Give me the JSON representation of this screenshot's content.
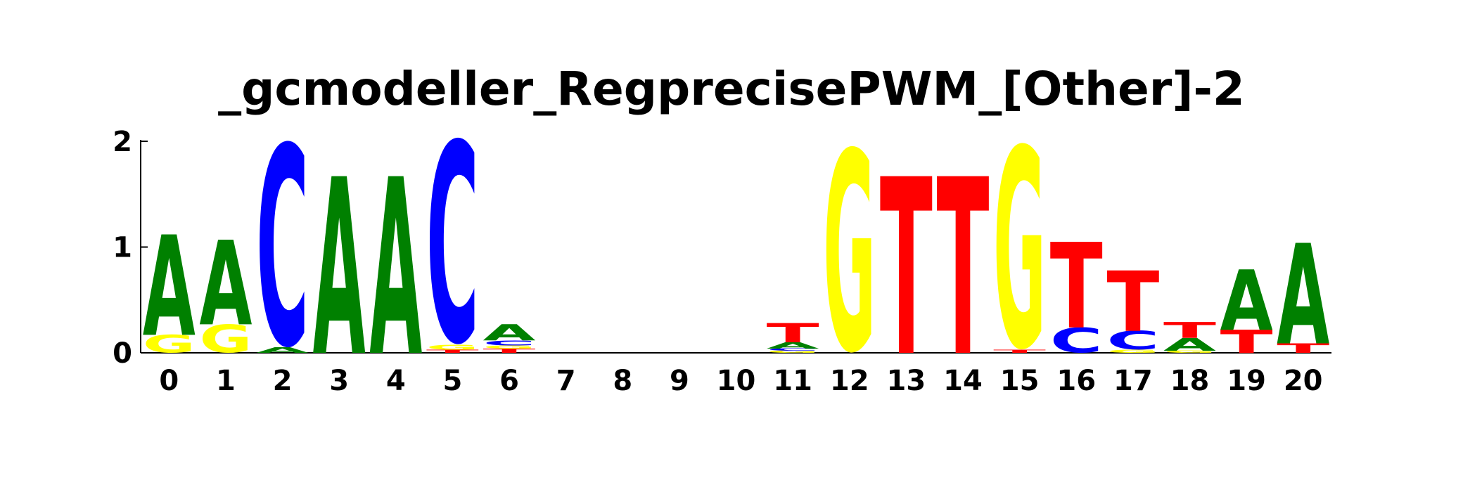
{
  "chart_data": {
    "type": "sequence-logo",
    "title": "_gcmodeller_RegprecisePWM_[Other]-2",
    "xlabel": "",
    "ylabel": "",
    "ylim": [
      0,
      2
    ],
    "yticks": [
      0,
      1,
      2
    ],
    "grid": false,
    "colors": {
      "A": "#008000",
      "C": "#0000ff",
      "G": "#ffff00",
      "T": "#ff0000"
    },
    "positions": [
      {
        "pos": "0",
        "stack": [
          {
            "letter": "G",
            "height": 0.17
          },
          {
            "letter": "A",
            "height": 0.95
          }
        ]
      },
      {
        "pos": "1",
        "stack": [
          {
            "letter": "G",
            "height": 0.27
          },
          {
            "letter": "A",
            "height": 0.8
          }
        ]
      },
      {
        "pos": "2",
        "stack": [
          {
            "letter": "A",
            "height": 0.05
          },
          {
            "letter": "C",
            "height": 1.92
          }
        ]
      },
      {
        "pos": "3",
        "stack": [
          {
            "letter": "A",
            "height": 1.67
          }
        ]
      },
      {
        "pos": "4",
        "stack": [
          {
            "letter": "A",
            "height": 1.67
          }
        ]
      },
      {
        "pos": "5",
        "stack": [
          {
            "letter": "T",
            "height": 0.03
          },
          {
            "letter": "G",
            "height": 0.05
          },
          {
            "letter": "C",
            "height": 1.92
          }
        ]
      },
      {
        "pos": "6",
        "stack": [
          {
            "letter": "T",
            "height": 0.04
          },
          {
            "letter": "G",
            "height": 0.03
          },
          {
            "letter": "C",
            "height": 0.05
          },
          {
            "letter": "A",
            "height": 0.15
          }
        ]
      },
      {
        "pos": "7",
        "stack": []
      },
      {
        "pos": "8",
        "stack": []
      },
      {
        "pos": "9",
        "stack": []
      },
      {
        "pos": "10",
        "stack": []
      },
      {
        "pos": "11",
        "stack": [
          {
            "letter": "G",
            "height": 0.02
          },
          {
            "letter": "C",
            "height": 0.02
          },
          {
            "letter": "A",
            "height": 0.06
          },
          {
            "letter": "T",
            "height": 0.18
          }
        ]
      },
      {
        "pos": "12",
        "stack": [
          {
            "letter": "G",
            "height": 1.92
          }
        ]
      },
      {
        "pos": "13",
        "stack": [
          {
            "letter": "T",
            "height": 1.67
          }
        ]
      },
      {
        "pos": "14",
        "stack": [
          {
            "letter": "T",
            "height": 1.67
          }
        ]
      },
      {
        "pos": "15",
        "stack": [
          {
            "letter": "T",
            "height": 0.03
          },
          {
            "letter": "G",
            "height": 1.92
          }
        ]
      },
      {
        "pos": "16",
        "stack": [
          {
            "letter": "C",
            "height": 0.24
          },
          {
            "letter": "T",
            "height": 0.81
          }
        ]
      },
      {
        "pos": "17",
        "stack": [
          {
            "letter": "G",
            "height": 0.03
          },
          {
            "letter": "C",
            "height": 0.18
          },
          {
            "letter": "T",
            "height": 0.57
          }
        ]
      },
      {
        "pos": "18",
        "stack": [
          {
            "letter": "G",
            "height": 0.02
          },
          {
            "letter": "A",
            "height": 0.12
          },
          {
            "letter": "T",
            "height": 0.15
          }
        ]
      },
      {
        "pos": "19",
        "stack": [
          {
            "letter": "T",
            "height": 0.22
          },
          {
            "letter": "A",
            "height": 0.57
          }
        ]
      },
      {
        "pos": "20",
        "stack": [
          {
            "letter": "T",
            "height": 0.09
          },
          {
            "letter": "A",
            "height": 0.95
          }
        ]
      }
    ]
  }
}
